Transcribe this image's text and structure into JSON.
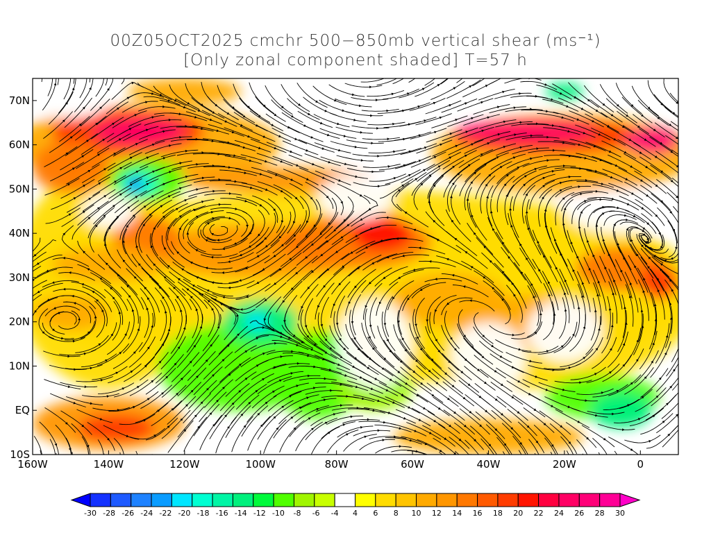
{
  "title": {
    "line1": "00Z05OCT2025 cmchr 500−850mb vertical shear (ms⁻¹)",
    "line2": "[Only zonal component shaded] T=57 h"
  },
  "map": {
    "lon_range": [
      -160,
      10
    ],
    "lat_range": [
      -10,
      75
    ],
    "lon_ticks": [
      {
        "label": "160W",
        "value": -160
      },
      {
        "label": "140W",
        "value": -140
      },
      {
        "label": "120W",
        "value": -120
      },
      {
        "label": "100W",
        "value": -100
      },
      {
        "label": "80W",
        "value": -80
      },
      {
        "label": "60W",
        "value": -60
      },
      {
        "label": "40W",
        "value": -40
      },
      {
        "label": "20W",
        "value": -20
      },
      {
        "label": "0",
        "value": 0
      }
    ],
    "lat_ticks": [
      {
        "label": "70N",
        "value": 70
      },
      {
        "label": "60N",
        "value": 60
      },
      {
        "label": "50N",
        "value": 50
      },
      {
        "label": "40N",
        "value": 40
      },
      {
        "label": "30N",
        "value": 30
      },
      {
        "label": "20N",
        "value": 20
      },
      {
        "label": "10N",
        "value": 10
      },
      {
        "label": "EQ",
        "value": 0
      },
      {
        "label": "10S",
        "value": -10
      }
    ]
  },
  "colorbar": {
    "labels": [
      "-30",
      "-28",
      "-26",
      "-24",
      "-22",
      "-20",
      "-18",
      "-16",
      "-14",
      "-12",
      "-10",
      "-8",
      "-6",
      "-4",
      "4",
      "6",
      "8",
      "10",
      "12",
      "14",
      "16",
      "18",
      "20",
      "22",
      "24",
      "26",
      "28",
      "30"
    ],
    "low_color": "#0000ff",
    "high_color": "#ff00c8",
    "colors": [
      "#1432ff",
      "#1e5aff",
      "#1e82ff",
      "#0a9cff",
      "#00e6ff",
      "#00ffd2",
      "#00f5a5",
      "#00f07d",
      "#00fa3c",
      "#50ff00",
      "#a0f500",
      "#c8ff00",
      "#ffffff",
      "#ffff00",
      "#ffdc00",
      "#ffc400",
      "#ffaa00",
      "#ff9600",
      "#ff7800",
      "#ff5a00",
      "#ff3c00",
      "#ff1400",
      "#ff0040",
      "#ff0064",
      "#ff0078",
      "#ff0096"
    ]
  }
}
